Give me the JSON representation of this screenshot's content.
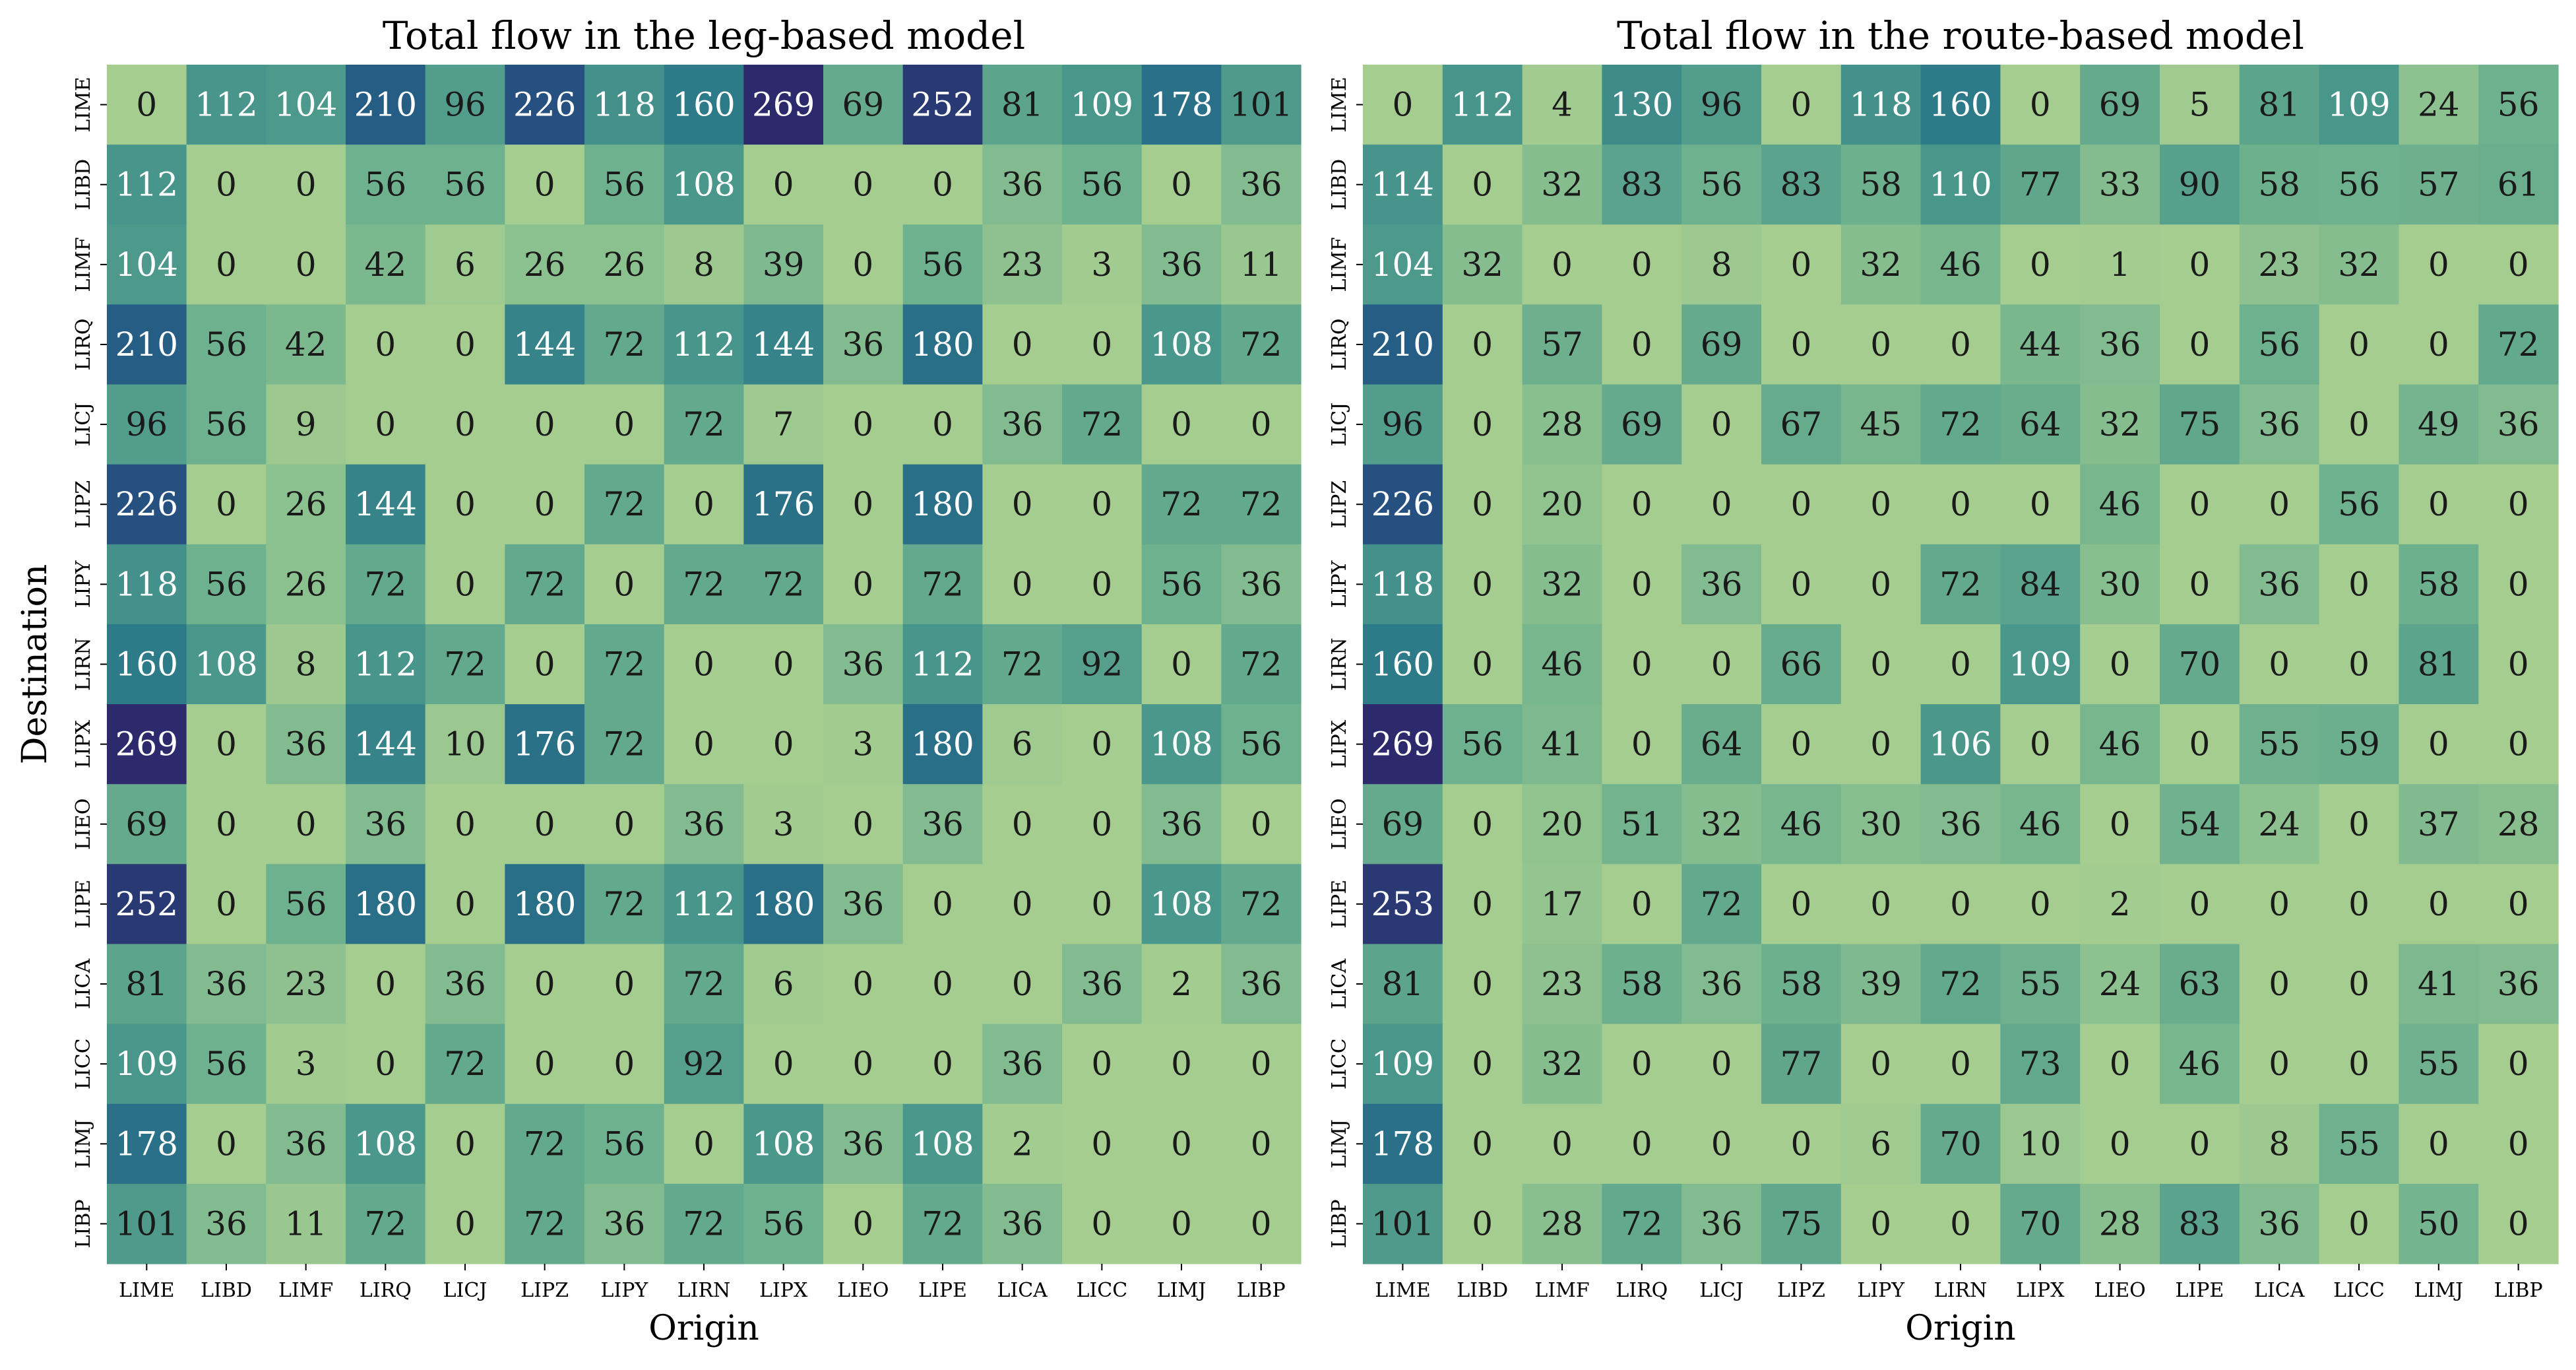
{
  "chart_data": [
    {
      "type": "heatmap",
      "title": "Total flow in the leg-based model",
      "xlabel": "Origin",
      "ylabel": "Destination",
      "x_categories": [
        "LIME",
        "LIBD",
        "LIMF",
        "LIRQ",
        "LICJ",
        "LIPZ",
        "LIPY",
        "LIRN",
        "LIPX",
        "LIEO",
        "LIPE",
        "LICA",
        "LICC",
        "LIMJ",
        "LIBP"
      ],
      "y_categories": [
        "LIME",
        "LIBD",
        "LIMF",
        "LIRQ",
        "LICJ",
        "LIPZ",
        "LIPY",
        "LIRN",
        "LIPX",
        "LIEO",
        "LIPE",
        "LICA",
        "LICC",
        "LIMJ",
        "LIBP"
      ],
      "values": [
        [
          0,
          112,
          104,
          210,
          96,
          226,
          118,
          160,
          269,
          69,
          252,
          81,
          109,
          178,
          101
        ],
        [
          112,
          0,
          0,
          56,
          56,
          0,
          56,
          108,
          0,
          0,
          0,
          36,
          56,
          0,
          36
        ],
        [
          104,
          0,
          0,
          42,
          6,
          26,
          26,
          8,
          39,
          0,
          56,
          23,
          3,
          36,
          11
        ],
        [
          210,
          56,
          42,
          0,
          0,
          144,
          72,
          112,
          144,
          36,
          180,
          0,
          0,
          108,
          72
        ],
        [
          96,
          56,
          9,
          0,
          0,
          0,
          0,
          72,
          7,
          0,
          0,
          36,
          72,
          0,
          0
        ],
        [
          226,
          0,
          26,
          144,
          0,
          0,
          72,
          0,
          176,
          0,
          180,
          0,
          0,
          72,
          72
        ],
        [
          118,
          56,
          26,
          72,
          0,
          72,
          0,
          72,
          72,
          0,
          72,
          0,
          0,
          56,
          36
        ],
        [
          160,
          108,
          8,
          112,
          72,
          0,
          72,
          0,
          0,
          36,
          112,
          72,
          92,
          0,
          72
        ],
        [
          269,
          0,
          36,
          144,
          10,
          176,
          72,
          0,
          0,
          3,
          180,
          6,
          0,
          108,
          56
        ],
        [
          69,
          0,
          0,
          36,
          0,
          0,
          0,
          36,
          3,
          0,
          36,
          0,
          0,
          36,
          0
        ],
        [
          252,
          0,
          56,
          180,
          0,
          180,
          72,
          112,
          180,
          36,
          0,
          0,
          0,
          108,
          72
        ],
        [
          81,
          36,
          23,
          0,
          36,
          0,
          0,
          72,
          6,
          0,
          0,
          0,
          36,
          2,
          36
        ],
        [
          109,
          56,
          3,
          0,
          72,
          0,
          0,
          92,
          0,
          0,
          0,
          36,
          0,
          0,
          0
        ],
        [
          178,
          0,
          36,
          108,
          0,
          72,
          56,
          0,
          108,
          36,
          108,
          2,
          0,
          0,
          0
        ],
        [
          101,
          36,
          11,
          72,
          0,
          72,
          36,
          72,
          56,
          0,
          72,
          36,
          0,
          0,
          0
        ]
      ],
      "colormap": "crest",
      "vmin": 0,
      "vmax": 269
    },
    {
      "type": "heatmap",
      "title": "Total flow in the route-based model",
      "xlabel": "Origin",
      "ylabel": "",
      "x_categories": [
        "LIME",
        "LIBD",
        "LIMF",
        "LIRQ",
        "LICJ",
        "LIPZ",
        "LIPY",
        "LIRN",
        "LIPX",
        "LIEO",
        "LIPE",
        "LICA",
        "LICC",
        "LIMJ",
        "LIBP"
      ],
      "y_categories": [
        "LIME",
        "LIBD",
        "LIMF",
        "LIRQ",
        "LICJ",
        "LIPZ",
        "LIPY",
        "LIRN",
        "LIPX",
        "LIEO",
        "LIPE",
        "LICA",
        "LICC",
        "LIMJ",
        "LIBP"
      ],
      "values": [
        [
          0,
          112,
          4,
          130,
          96,
          0,
          118,
          160,
          0,
          69,
          5,
          81,
          109,
          24,
          56
        ],
        [
          114,
          0,
          32,
          83,
          56,
          83,
          58,
          110,
          77,
          33,
          90,
          58,
          56,
          57,
          61
        ],
        [
          104,
          32,
          0,
          0,
          8,
          0,
          32,
          46,
          0,
          1,
          0,
          23,
          32,
          0,
          0
        ],
        [
          210,
          0,
          57,
          0,
          69,
          0,
          0,
          0,
          44,
          36,
          0,
          56,
          0,
          0,
          72
        ],
        [
          96,
          0,
          28,
          69,
          0,
          67,
          45,
          72,
          64,
          32,
          75,
          36,
          0,
          49,
          36
        ],
        [
          226,
          0,
          20,
          0,
          0,
          0,
          0,
          0,
          0,
          46,
          0,
          0,
          56,
          0,
          0
        ],
        [
          118,
          0,
          32,
          0,
          36,
          0,
          0,
          72,
          84,
          30,
          0,
          36,
          0,
          58,
          0
        ],
        [
          160,
          0,
          46,
          0,
          0,
          66,
          0,
          0,
          109,
          0,
          70,
          0,
          0,
          81,
          0
        ],
        [
          269,
          56,
          41,
          0,
          64,
          0,
          0,
          106,
          0,
          46,
          0,
          55,
          59,
          0,
          0
        ],
        [
          69,
          0,
          20,
          51,
          32,
          46,
          30,
          36,
          46,
          0,
          54,
          24,
          0,
          37,
          28
        ],
        [
          253,
          0,
          17,
          0,
          72,
          0,
          0,
          0,
          0,
          2,
          0,
          0,
          0,
          0,
          0
        ],
        [
          81,
          0,
          23,
          58,
          36,
          58,
          39,
          72,
          55,
          24,
          63,
          0,
          0,
          41,
          36
        ],
        [
          109,
          0,
          32,
          0,
          0,
          77,
          0,
          0,
          73,
          0,
          46,
          0,
          0,
          55,
          0
        ],
        [
          178,
          0,
          0,
          0,
          0,
          0,
          6,
          70,
          10,
          0,
          0,
          8,
          55,
          0,
          0
        ],
        [
          101,
          0,
          28,
          72,
          36,
          75,
          0,
          0,
          70,
          28,
          83,
          36,
          0,
          50,
          0
        ]
      ],
      "colormap": "crest",
      "vmin": 0,
      "vmax": 269
    }
  ]
}
